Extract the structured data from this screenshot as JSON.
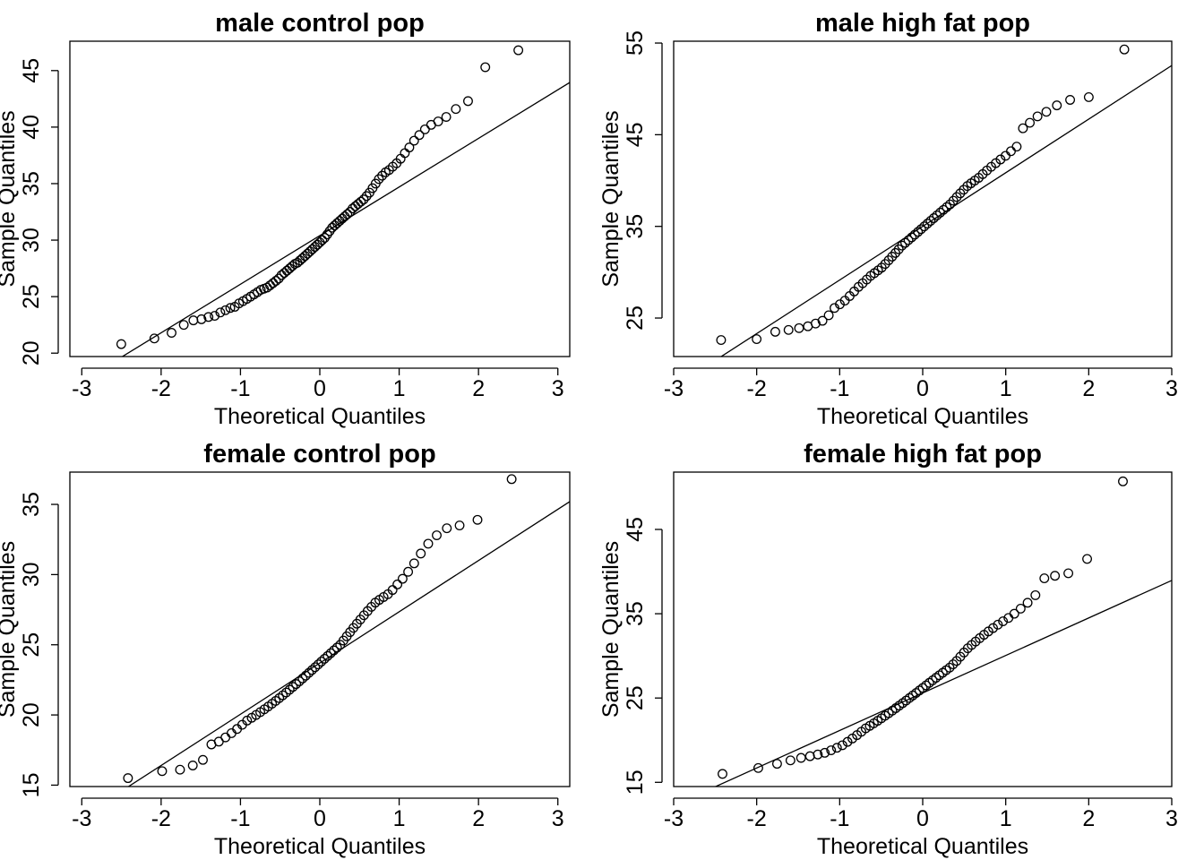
{
  "chart_data": [
    {
      "type": "scatter",
      "title": "male control pop",
      "xlabel": "Theoretical Quantiles",
      "ylabel": "Sample Quantiles",
      "xlim": [
        -3.15,
        3.15
      ],
      "ylim": [
        19.7,
        47.6
      ],
      "xticks": [
        "-3",
        "-2",
        "-1",
        "0",
        "1",
        "2",
        "3"
      ],
      "xtick_values": [
        -3,
        -2,
        -1,
        0,
        1,
        2,
        3
      ],
      "yticks": [
        "20",
        "25",
        "30",
        "35",
        "40",
        "45"
      ],
      "ytick_values": [
        20,
        25,
        30,
        35,
        40,
        45
      ],
      "qqline": {
        "intercept": 30.4,
        "slope": 4.3
      },
      "sample_quantiles": [
        20.8,
        21.3,
        21.8,
        22.5,
        22.9,
        23.0,
        23.2,
        23.3,
        23.6,
        23.8,
        24.0,
        24.1,
        24.4,
        24.6,
        24.8,
        25.0,
        25.2,
        25.4,
        25.6,
        25.7,
        25.8,
        26.0,
        26.2,
        26.4,
        26.6,
        26.9,
        27.1,
        27.3,
        27.5,
        27.7,
        27.9,
        28.0,
        28.2,
        28.4,
        28.6,
        28.8,
        29.0,
        29.2,
        29.4,
        29.6,
        29.8,
        30.0,
        30.2,
        30.5,
        30.8,
        31.1,
        31.3,
        31.5,
        31.7,
        31.9,
        32.1,
        32.3,
        32.5,
        32.8,
        33.0,
        33.2,
        33.4,
        33.6,
        33.9,
        34.2,
        34.6,
        35.0,
        35.4,
        35.7,
        36.0,
        36.2,
        36.5,
        36.8,
        37.2,
        37.7,
        38.2,
        38.8,
        39.3,
        39.8,
        40.2,
        40.5,
        40.9,
        41.6,
        42.3,
        45.3,
        46.8
      ],
      "n_points": 81
    },
    {
      "type": "scatter",
      "title": "male high fat pop",
      "xlabel": "Theoretical Quantiles",
      "ylabel": "Sample Quantiles",
      "xlim": [
        -3.0,
        3.0
      ],
      "ylim": [
        20.8,
        55.2
      ],
      "xticks": [
        "-3",
        "-2",
        "-1",
        "0",
        "1",
        "2",
        "3"
      ],
      "xtick_values": [
        -3,
        -2,
        -1,
        0,
        1,
        2,
        3
      ],
      "yticks": [
        "25",
        "35",
        "45",
        "55"
      ],
      "ytick_values": [
        25,
        35,
        45,
        55
      ],
      "qqline": {
        "intercept": 35.0,
        "slope": 5.85
      },
      "sample_quantiles": [
        22.6,
        22.7,
        23.5,
        23.7,
        23.9,
        24.1,
        24.4,
        24.7,
        25.3,
        26.1,
        26.5,
        26.9,
        27.4,
        27.9,
        28.4,
        28.8,
        29.2,
        29.6,
        29.9,
        30.2,
        30.5,
        30.9,
        31.3,
        31.7,
        32.1,
        32.5,
        32.9,
        33.2,
        33.5,
        33.8,
        34.1,
        34.4,
        34.7,
        35.0,
        35.3,
        35.6,
        35.9,
        36.2,
        36.5,
        36.8,
        37.1,
        37.4,
        37.8,
        38.2,
        38.6,
        39.0,
        39.4,
        39.7,
        40.0,
        40.3,
        40.7,
        41.1,
        41.5,
        41.9,
        42.3,
        42.7,
        43.2,
        43.7,
        45.7,
        46.3,
        47.0,
        47.5,
        48.2,
        48.8,
        49.1,
        54.3
      ],
      "n_points": 66
    },
    {
      "type": "scatter",
      "title": "female control pop",
      "xlabel": "Theoretical Quantiles",
      "ylabel": "Sample Quantiles",
      "xlim": [
        -3.15,
        3.15
      ],
      "ylim": [
        14.9,
        37.3
      ],
      "xticks": [
        "-3",
        "-2",
        "-1",
        "0",
        "1",
        "2",
        "3"
      ],
      "xtick_values": [
        -3,
        -2,
        -1,
        0,
        1,
        2,
        3
      ],
      "yticks": [
        "15",
        "20",
        "25",
        "30",
        "35"
      ],
      "ytick_values": [
        15,
        20,
        25,
        30,
        35
      ],
      "qqline": {
        "intercept": 23.7,
        "slope": 3.65
      },
      "sample_quantiles": [
        15.5,
        16.0,
        16.1,
        16.4,
        16.8,
        17.9,
        18.1,
        18.4,
        18.7,
        19.0,
        19.3,
        19.6,
        19.8,
        20.0,
        20.2,
        20.4,
        20.6,
        20.8,
        21.0,
        21.2,
        21.4,
        21.6,
        21.8,
        22.0,
        22.2,
        22.4,
        22.6,
        22.8,
        23.0,
        23.2,
        23.4,
        23.6,
        23.8,
        24.0,
        24.2,
        24.4,
        24.6,
        24.8,
        25.0,
        25.3,
        25.6,
        25.9,
        26.2,
        26.5,
        26.8,
        27.1,
        27.4,
        27.7,
        28.0,
        28.2,
        28.4,
        28.6,
        28.9,
        29.3,
        29.7,
        30.2,
        30.8,
        31.5,
        32.2,
        32.8,
        33.3,
        33.5,
        33.9,
        36.8
      ],
      "n_points": 64
    },
    {
      "type": "scatter",
      "title": "female high fat pop",
      "xlabel": "Theoretical Quantiles",
      "ylabel": "Sample Quantiles",
      "xlim": [
        -3.0,
        3.0
      ],
      "ylim": [
        14.5,
        51.8
      ],
      "xticks": [
        "-3",
        "-2",
        "-1",
        "0",
        "1",
        "2",
        "3"
      ],
      "xtick_values": [
        -3,
        -2,
        -1,
        0,
        1,
        2,
        3
      ],
      "yticks": [
        "15",
        "25",
        "35",
        "45"
      ],
      "ytick_values": [
        15,
        25,
        35,
        45
      ],
      "qqline": {
        "intercept": 25.6,
        "slope": 4.45
      },
      "sample_quantiles": [
        16.0,
        16.7,
        17.2,
        17.6,
        17.9,
        18.1,
        18.3,
        18.5,
        18.8,
        19.1,
        19.4,
        19.8,
        20.2,
        20.6,
        21.0,
        21.4,
        21.7,
        22.0,
        22.3,
        22.6,
        22.9,
        23.2,
        23.5,
        23.8,
        24.1,
        24.4,
        24.7,
        25.0,
        25.3,
        25.6,
        25.9,
        26.2,
        26.5,
        26.8,
        27.1,
        27.4,
        27.7,
        28.0,
        28.3,
        28.6,
        29.0,
        29.4,
        29.9,
        30.4,
        30.9,
        31.3,
        31.7,
        32.1,
        32.5,
        32.9,
        33.3,
        33.7,
        34.1,
        34.5,
        35.0,
        35.6,
        36.3,
        37.2,
        39.2,
        39.5,
        39.8,
        41.5,
        50.7
      ],
      "n_points": 63
    }
  ]
}
